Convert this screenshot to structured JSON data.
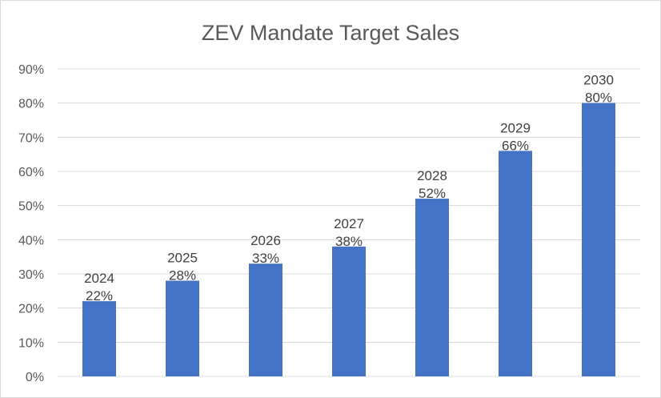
{
  "chart_data": {
    "type": "bar",
    "title": "ZEV Mandate Target Sales",
    "categories": [
      "2024",
      "2025",
      "2026",
      "2027",
      "2028",
      "2029",
      "2030"
    ],
    "values": [
      22,
      28,
      33,
      38,
      52,
      66,
      80
    ],
    "data_labels": [
      {
        "year": "2024",
        "value": "22%"
      },
      {
        "year": "2025",
        "value": "28%"
      },
      {
        "year": "2026",
        "value": "33%"
      },
      {
        "year": "2027",
        "value": "38%"
      },
      {
        "year": "2028",
        "value": "52%"
      },
      {
        "year": "2029",
        "value": "66%"
      },
      {
        "year": "2030",
        "value": "80%"
      }
    ],
    "y_ticks": [
      "0%",
      "10%",
      "20%",
      "30%",
      "40%",
      "50%",
      "60%",
      "70%",
      "80%",
      "90%"
    ],
    "ylim": [
      0,
      90
    ],
    "grid": true,
    "legend": "none",
    "bar_color": "#4472C4"
  }
}
